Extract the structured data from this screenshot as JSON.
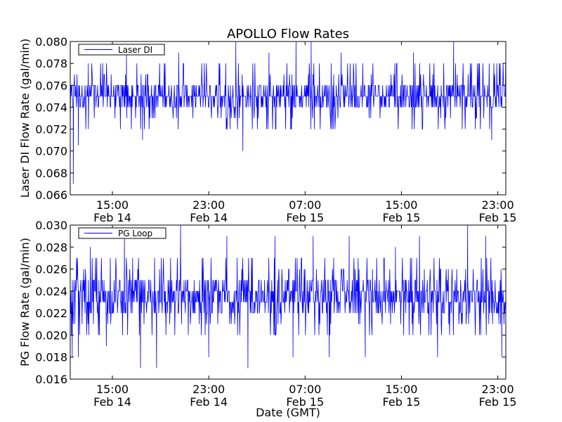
{
  "chart_data": {
    "type": "line",
    "title": "APOLLO Flow Rates",
    "xlabel": "Date (GMT)",
    "panels": [
      {
        "name": "laser-di",
        "ylabel": "Laser DI Flow Rate (gal/min)",
        "ylim": [
          0.066,
          0.08
        ],
        "yticks": [
          "0.066",
          "0.068",
          "0.070",
          "0.072",
          "0.074",
          "0.076",
          "0.078",
          "0.080"
        ],
        "legend": {
          "placement": "top-left",
          "label": "Laser DI"
        },
        "series": [
          {
            "name": "Laser DI",
            "color": "#0000ff",
            "baseline_range": [
              0.074,
              0.076
            ],
            "spikes": [
              {
                "x": "2014-02-14T11:30",
                "y": 0.072
              },
              {
                "x": "2014-02-14T11:45",
                "y": 0.067
              },
              {
                "x": "2014-02-14T12:10",
                "y": 0.0705
              },
              {
                "x": "2014-02-14T13:00",
                "y": 0.078
              },
              {
                "x": "2014-02-14T16:10",
                "y": 0.079
              },
              {
                "x": "2014-02-14T17:30",
                "y": 0.071
              },
              {
                "x": "2014-02-14T20:30",
                "y": 0.079
              },
              {
                "x": "2014-02-15T00:30",
                "y": 0.072
              },
              {
                "x": "2014-02-15T01:15",
                "y": 0.08
              },
              {
                "x": "2014-02-15T01:50",
                "y": 0.07
              },
              {
                "x": "2014-02-15T04:00",
                "y": 0.079
              },
              {
                "x": "2014-02-15T05:50",
                "y": 0.072
              },
              {
                "x": "2014-02-15T06:15",
                "y": 0.08
              },
              {
                "x": "2014-02-15T07:30",
                "y": 0.08
              },
              {
                "x": "2014-02-15T10:00",
                "y": 0.079
              },
              {
                "x": "2014-02-15T16:00",
                "y": 0.079
              },
              {
                "x": "2014-02-15T19:20",
                "y": 0.08
              },
              {
                "x": "2014-02-15T22:30",
                "y": 0.071
              },
              {
                "x": "2014-02-15T23:40",
                "y": 0.078
              }
            ]
          }
        ]
      },
      {
        "name": "pg-loop",
        "ylabel": "PG Flow Rate (gal/min)",
        "ylim": [
          0.016,
          0.03
        ],
        "yticks": [
          "0.016",
          "0.018",
          "0.020",
          "0.022",
          "0.024",
          "0.026",
          "0.028",
          "0.030"
        ],
        "legend": {
          "placement": "top-left",
          "label": "PG Loop"
        },
        "series": [
          {
            "name": "PG Loop",
            "color": "#0000ff",
            "baseline_range": [
              0.022,
              0.025
            ],
            "spikes": [
              {
                "x": "2014-02-14T11:40",
                "y": 0.018
              },
              {
                "x": "2014-02-14T12:10",
                "y": 0.018
              },
              {
                "x": "2014-02-14T13:10",
                "y": 0.028
              },
              {
                "x": "2014-02-14T14:30",
                "y": 0.019
              },
              {
                "x": "2014-02-14T16:00",
                "y": 0.029
              },
              {
                "x": "2014-02-14T17:20",
                "y": 0.017
              },
              {
                "x": "2014-02-14T18:40",
                "y": 0.017
              },
              {
                "x": "2014-02-14T20:40",
                "y": 0.03
              },
              {
                "x": "2014-02-14T23:00",
                "y": 0.018
              },
              {
                "x": "2014-02-15T00:30",
                "y": 0.029
              },
              {
                "x": "2014-02-15T02:15",
                "y": 0.017
              },
              {
                "x": "2014-02-15T04:30",
                "y": 0.029
              },
              {
                "x": "2014-02-15T06:00",
                "y": 0.018
              },
              {
                "x": "2014-02-15T07:40",
                "y": 0.029
              },
              {
                "x": "2014-02-15T09:00",
                "y": 0.018
              },
              {
                "x": "2014-02-15T10:40",
                "y": 0.029
              },
              {
                "x": "2014-02-15T12:00",
                "y": 0.018
              },
              {
                "x": "2014-02-15T14:30",
                "y": 0.028
              },
              {
                "x": "2014-02-15T16:30",
                "y": 0.029
              },
              {
                "x": "2014-02-15T18:00",
                "y": 0.018
              },
              {
                "x": "2014-02-15T20:30",
                "y": 0.03
              },
              {
                "x": "2014-02-15T22:00",
                "y": 0.029
              },
              {
                "x": "2014-02-15T23:20",
                "y": 0.018
              }
            ]
          }
        ]
      }
    ],
    "xlim": [
      "2014-02-14T11:30",
      "2014-02-15T23:40"
    ],
    "xticks": [
      {
        "x": "2014-02-14T15:00",
        "time": "15:00",
        "date": "Feb 14"
      },
      {
        "x": "2014-02-14T23:00",
        "time": "23:00",
        "date": "Feb 14"
      },
      {
        "x": "2014-02-15T07:00",
        "time": "07:00",
        "date": "Feb 15"
      },
      {
        "x": "2014-02-15T15:00",
        "time": "15:00",
        "date": "Feb 15"
      },
      {
        "x": "2014-02-15T23:00",
        "time": "23:00",
        "date": "Feb 15"
      }
    ],
    "grid": false
  }
}
